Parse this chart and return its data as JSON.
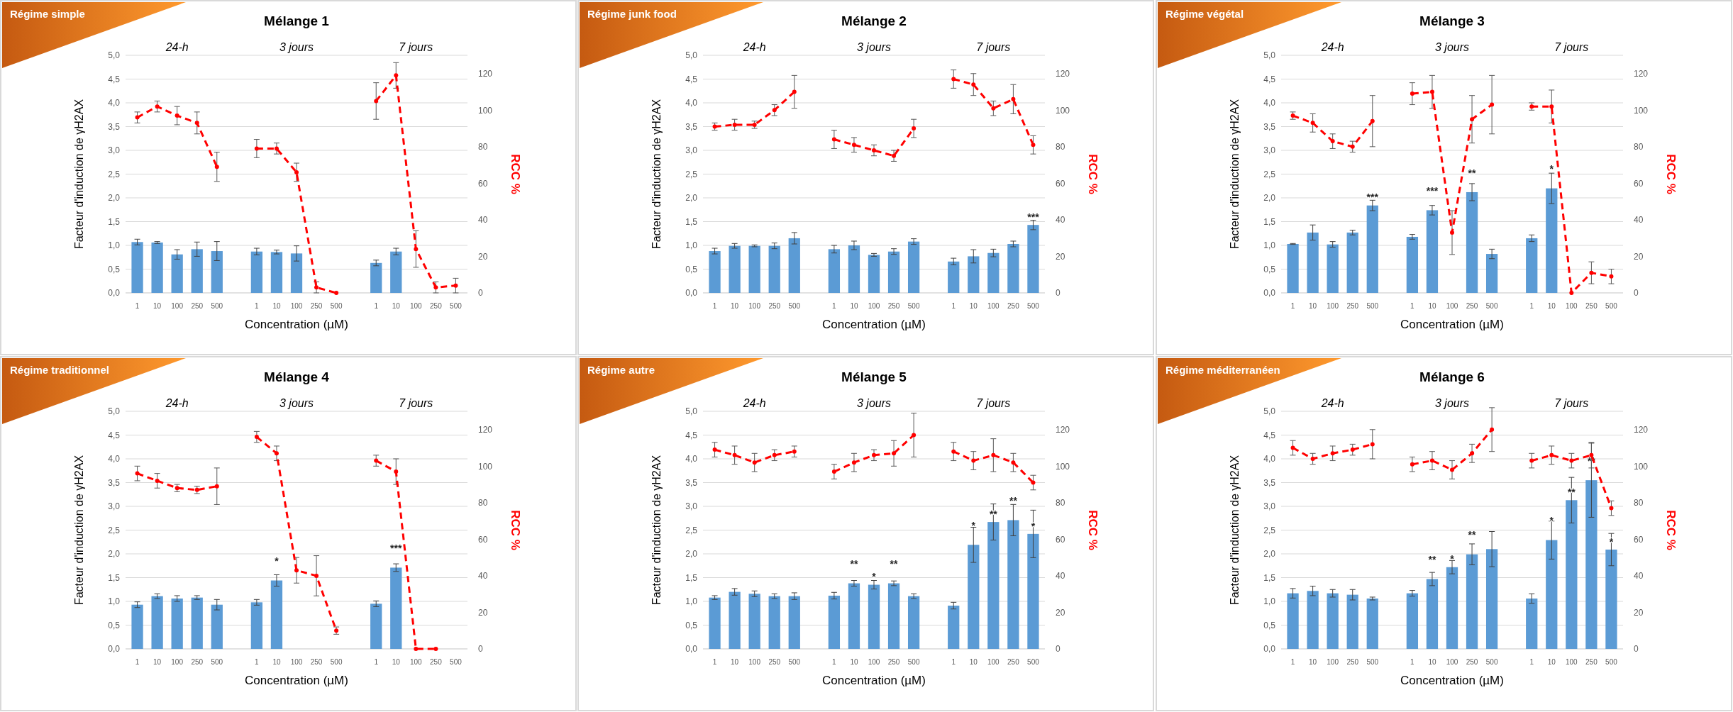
{
  "chart_data": [
    {
      "type": "bar",
      "title": "Mélange 1",
      "subtitle": "Régime simple",
      "xlabel": "Concentration (µM)",
      "ylabel": "Facteur d'induction de γH2AX",
      "y2label": "RCC %",
      "annotations": [
        "24-h",
        "3 jours",
        "7 jours"
      ],
      "categories": [
        "1",
        "10",
        "100",
        "250",
        "500",
        null,
        "1",
        "10",
        "100",
        "250",
        "500",
        null,
        "1",
        "10",
        "100",
        "250",
        "500"
      ],
      "ylim": [
        0,
        5
      ],
      "yticks": [
        {
          "value": 0,
          "label": "0,0"
        },
        {
          "value": 0.5,
          "label": "0,5"
        },
        {
          "value": 1,
          "label": "1,0"
        },
        {
          "value": 1.5,
          "label": "1,5"
        },
        {
          "value": 2,
          "label": "2,0"
        },
        {
          "value": 2.5,
          "label": "2,5"
        },
        {
          "value": 3,
          "label": "3,0"
        },
        {
          "value": 3.5,
          "label": "3,5"
        },
        {
          "value": 4,
          "label": "4,0"
        },
        {
          "value": 4.5,
          "label": "4,5"
        },
        {
          "value": 5,
          "label": "5,0"
        }
      ],
      "y2lim": [
        0,
        130
      ],
      "y2ticks": [
        0,
        20,
        40,
        60,
        80,
        100,
        120
      ],
      "grid": "y",
      "series": [
        {
          "type": "bar",
          "color": "#5b9bd5",
          "values": [
            1.07,
            1.06,
            0.81,
            0.92,
            0.88,
            null,
            0.87,
            0.86,
            0.83,
            null,
            null,
            null,
            0.63,
            0.87,
            null,
            null,
            null
          ],
          "errors": [
            0.06,
            0.02,
            0.1,
            0.15,
            0.2,
            null,
            0.07,
            0.04,
            0.16,
            null,
            null,
            null,
            0.06,
            0.07,
            null,
            null,
            null
          ]
        },
        {
          "type": "line",
          "axis": "y2",
          "color": "#ff0000",
          "line_style": "dashed",
          "marker": "circle",
          "values": [
            96,
            102,
            97,
            93,
            69,
            null,
            79,
            79,
            66,
            3,
            0,
            null,
            105,
            119,
            24,
            3,
            4
          ],
          "errors": [
            3,
            3,
            5,
            6,
            8,
            null,
            5,
            3,
            5,
            3,
            null,
            null,
            10,
            7,
            10,
            3,
            4
          ]
        }
      ]
    },
    {
      "type": "bar",
      "title": "Mélange 2",
      "subtitle": "Régime junk food",
      "xlabel": "Concentration (µM)",
      "ylabel": "Facteur d'induction de γH2AX",
      "y2label": "RCC %",
      "annotations": [
        "24-h",
        "3 jours",
        "7 jours"
      ],
      "categories": [
        "1",
        "10",
        "100",
        "250",
        "500",
        null,
        "1",
        "10",
        "100",
        "250",
        "500",
        null,
        "1",
        "10",
        "100",
        "250",
        "500"
      ],
      "ylim": [
        0,
        5
      ],
      "yticks": [
        {
          "value": 0,
          "label": "0,0"
        },
        {
          "value": 0.5,
          "label": "0,5"
        },
        {
          "value": 1,
          "label": "1,0"
        },
        {
          "value": 1.5,
          "label": "1,5"
        },
        {
          "value": 2,
          "label": "2,0"
        },
        {
          "value": 2.5,
          "label": "2,5"
        },
        {
          "value": 3,
          "label": "3,0"
        },
        {
          "value": 3.5,
          "label": "3,5"
        },
        {
          "value": 4,
          "label": "4,0"
        },
        {
          "value": 4.5,
          "label": "4,5"
        },
        {
          "value": 5,
          "label": "5,0"
        }
      ],
      "y2lim": [
        0,
        130
      ],
      "y2ticks": [
        0,
        20,
        40,
        60,
        80,
        100,
        120
      ],
      "grid": "y",
      "series": [
        {
          "type": "bar",
          "color": "#5b9bd5",
          "values": [
            0.88,
            0.99,
            0.99,
            0.99,
            1.15,
            null,
            0.92,
            1.0,
            0.8,
            0.87,
            1.08,
            null,
            0.66,
            0.77,
            0.84,
            1.03,
            1.43
          ],
          "errors": [
            0.06,
            0.05,
            0.02,
            0.06,
            0.12,
            null,
            0.08,
            0.09,
            0.03,
            0.06,
            0.06,
            null,
            0.07,
            0.14,
            0.08,
            0.06,
            0.1
          ],
          "value_labels": [
            null,
            null,
            null,
            null,
            null,
            null,
            null,
            null,
            null,
            null,
            null,
            null,
            null,
            null,
            null,
            null,
            "***"
          ]
        },
        {
          "type": "line",
          "axis": "y2",
          "color": "#ff0000",
          "line_style": "dashed",
          "marker": "circle",
          "values": [
            91,
            92,
            92,
            100,
            110,
            null,
            84,
            81,
            78,
            75,
            90,
            null,
            117,
            114,
            101,
            106,
            81
          ],
          "errors": [
            2,
            3,
            2,
            3,
            9,
            null,
            5,
            4,
            3,
            3,
            5,
            null,
            5,
            6,
            4,
            8,
            5
          ]
        }
      ]
    },
    {
      "type": "bar",
      "title": "Mélange 3",
      "subtitle": "Régime végétal",
      "xlabel": "Concentration (µM)",
      "ylabel": "Facteur d'induction de γH2AX",
      "y2label": "RCC %",
      "annotations": [
        "24-h",
        "3 jours",
        "7 jours"
      ],
      "categories": [
        "1",
        "10",
        "100",
        "250",
        "500",
        null,
        "1",
        "10",
        "100",
        "250",
        "500",
        null,
        "1",
        "10",
        "100",
        "250",
        "500"
      ],
      "ylim": [
        0,
        5
      ],
      "yticks": [
        {
          "value": 0,
          "label": "0,0"
        },
        {
          "value": 0.5,
          "label": "0,5"
        },
        {
          "value": 1,
          "label": "1,0"
        },
        {
          "value": 1.5,
          "label": "1,5"
        },
        {
          "value": 2,
          "label": "2,0"
        },
        {
          "value": 2.5,
          "label": "2,5"
        },
        {
          "value": 3,
          "label": "3,0"
        },
        {
          "value": 3.5,
          "label": "3,5"
        },
        {
          "value": 4,
          "label": "4,0"
        },
        {
          "value": 4.5,
          "label": "4,5"
        },
        {
          "value": 5,
          "label": "5,0"
        }
      ],
      "y2lim": [
        0,
        130
      ],
      "y2ticks": [
        0,
        20,
        40,
        60,
        80,
        100,
        120
      ],
      "grid": "y",
      "series": [
        {
          "type": "bar",
          "color": "#5b9bd5",
          "values": [
            1.03,
            1.27,
            1.02,
            1.27,
            1.84,
            null,
            1.18,
            1.74,
            null,
            2.12,
            0.82,
            null,
            1.15,
            2.2,
            null,
            null,
            null
          ],
          "errors": [
            0.01,
            0.16,
            0.06,
            0.05,
            0.11,
            null,
            0.05,
            0.1,
            null,
            0.18,
            0.1,
            null,
            0.07,
            0.32,
            null,
            null,
            null
          ],
          "value_labels": [
            null,
            null,
            null,
            null,
            "***",
            null,
            null,
            "***",
            null,
            "**",
            null,
            null,
            null,
            "*",
            null,
            null,
            null
          ]
        },
        {
          "type": "line",
          "axis": "y2",
          "color": "#ff0000",
          "line_style": "dashed",
          "marker": "circle",
          "values": [
            97,
            93,
            83,
            80,
            94,
            null,
            109,
            110,
            33,
            95,
            103,
            null,
            102,
            102,
            0,
            11,
            9
          ],
          "errors": [
            2,
            5,
            4,
            3,
            14,
            null,
            6,
            9,
            12,
            13,
            16,
            null,
            2,
            9,
            null,
            6,
            4
          ]
        }
      ]
    },
    {
      "type": "bar",
      "title": "Mélange 4",
      "subtitle": "Régime traditionnel",
      "xlabel": "Concentration (µM)",
      "ylabel": "Facteur d'induction de γH2AX",
      "y2label": "RCC %",
      "annotations": [
        "24-h",
        "3 jours",
        "7 jours"
      ],
      "categories": [
        "1",
        "10",
        "100",
        "250",
        "500",
        null,
        "1",
        "10",
        "100",
        "250",
        "500",
        null,
        "1",
        "10",
        "100",
        "250",
        "500"
      ],
      "ylim": [
        0,
        5
      ],
      "yticks": [
        {
          "value": 0,
          "label": "0,0"
        },
        {
          "value": 0.5,
          "label": "0,5"
        },
        {
          "value": 1,
          "label": "1,0"
        },
        {
          "value": 1.5,
          "label": "1,5"
        },
        {
          "value": 2,
          "label": "2,0"
        },
        {
          "value": 2.5,
          "label": "2,5"
        },
        {
          "value": 3,
          "label": "3,0"
        },
        {
          "value": 3.5,
          "label": "3,5"
        },
        {
          "value": 4,
          "label": "4,0"
        },
        {
          "value": 4.5,
          "label": "4,5"
        },
        {
          "value": 5,
          "label": "5,0"
        }
      ],
      "y2lim": [
        0,
        130
      ],
      "y2ticks": [
        0,
        20,
        40,
        60,
        80,
        100,
        120
      ],
      "grid": "y",
      "series": [
        {
          "type": "bar",
          "color": "#5b9bd5",
          "values": [
            0.93,
            1.11,
            1.06,
            1.08,
            0.93,
            null,
            0.98,
            1.44,
            null,
            null,
            null,
            null,
            0.95,
            1.71,
            null,
            null,
            null
          ],
          "errors": [
            0.06,
            0.05,
            0.06,
            0.04,
            0.11,
            null,
            0.06,
            0.12,
            null,
            null,
            null,
            null,
            0.06,
            0.08,
            null,
            null,
            null
          ],
          "value_labels": [
            null,
            null,
            null,
            null,
            null,
            null,
            null,
            "*",
            null,
            null,
            null,
            null,
            null,
            "***",
            null,
            null,
            null
          ]
        },
        {
          "type": "line",
          "axis": "y2",
          "color": "#ff0000",
          "line_style": "dashed",
          "marker": "circle",
          "values": [
            96,
            92,
            88,
            87,
            89,
            null,
            116,
            107,
            43,
            40,
            10,
            null,
            103,
            97,
            0,
            0,
            null
          ],
          "errors": [
            4,
            4,
            2,
            2,
            10,
            null,
            3,
            4,
            7,
            11,
            2,
            null,
            3,
            7,
            null,
            null,
            null
          ]
        }
      ]
    },
    {
      "type": "bar",
      "title": "Mélange 5",
      "subtitle": "Régime autre",
      "xlabel": "Concentration (µM)",
      "ylabel": "Facteur d'induction de γH2AX",
      "y2label": "RCC %",
      "annotations": [
        "24-h",
        "3 jours",
        "7 jours"
      ],
      "categories": [
        "1",
        "10",
        "100",
        "250",
        "500",
        null,
        "1",
        "10",
        "100",
        "250",
        "500",
        null,
        "1",
        "10",
        "100",
        "250",
        "500"
      ],
      "ylim": [
        0,
        5
      ],
      "yticks": [
        {
          "value": 0,
          "label": "0,0"
        },
        {
          "value": 0.5,
          "label": "0,5"
        },
        {
          "value": 1,
          "label": "1,0"
        },
        {
          "value": 1.5,
          "label": "1,5"
        },
        {
          "value": 2,
          "label": "2,0"
        },
        {
          "value": 2.5,
          "label": "2,5"
        },
        {
          "value": 3,
          "label": "3,0"
        },
        {
          "value": 3.5,
          "label": "3,5"
        },
        {
          "value": 4,
          "label": "4,0"
        },
        {
          "value": 4.5,
          "label": "4,5"
        },
        {
          "value": 5,
          "label": "5,0"
        }
      ],
      "y2lim": [
        0,
        130
      ],
      "y2ticks": [
        0,
        20,
        40,
        60,
        80,
        100,
        120
      ],
      "grid": "y",
      "series": [
        {
          "type": "bar",
          "color": "#5b9bd5",
          "values": [
            1.08,
            1.2,
            1.16,
            1.11,
            1.11,
            null,
            1.12,
            1.38,
            1.35,
            1.38,
            1.11,
            null,
            0.91,
            2.19,
            2.67,
            2.71,
            2.42
          ],
          "errors": [
            0.04,
            0.07,
            0.06,
            0.05,
            0.07,
            null,
            0.07,
            0.06,
            0.09,
            0.05,
            0.05,
            null,
            0.07,
            0.37,
            0.38,
            0.33,
            0.5
          ],
          "value_labels": [
            null,
            null,
            null,
            null,
            null,
            null,
            null,
            "**",
            "*",
            "**",
            null,
            null,
            null,
            "*",
            "**",
            "**",
            "*"
          ]
        },
        {
          "type": "line",
          "axis": "y2",
          "color": "#ff0000",
          "line_style": "dashed",
          "marker": "circle",
          "values": [
            109,
            106,
            102,
            106,
            108,
            null,
            97,
            102,
            106,
            107,
            117,
            null,
            108,
            103,
            106,
            102,
            91
          ],
          "errors": [
            4,
            5,
            5,
            3,
            3,
            null,
            4,
            5,
            3,
            7,
            12,
            null,
            5,
            5,
            9,
            5,
            4
          ]
        }
      ]
    },
    {
      "type": "bar",
      "title": "Mélange 6",
      "subtitle": "Régime méditerranéen",
      "xlabel": "Concentration (µM)",
      "ylabel": "Facteur d'induction de γH2AX",
      "y2label": "RCC %",
      "annotations": [
        "24-h",
        "3 jours",
        "7 jours"
      ],
      "categories": [
        "1",
        "10",
        "100",
        "250",
        "500",
        null,
        "1",
        "10",
        "100",
        "250",
        "500",
        null,
        "1",
        "10",
        "100",
        "250",
        "500"
      ],
      "ylim": [
        0,
        5
      ],
      "yticks": [
        {
          "value": 0,
          "label": "0,0"
        },
        {
          "value": 0.5,
          "label": "0,5"
        },
        {
          "value": 1,
          "label": "1,0"
        },
        {
          "value": 1.5,
          "label": "1,5"
        },
        {
          "value": 2,
          "label": "2,0"
        },
        {
          "value": 2.5,
          "label": "2,5"
        },
        {
          "value": 3,
          "label": "3,0"
        },
        {
          "value": 3.5,
          "label": "3,5"
        },
        {
          "value": 4,
          "label": "4,0"
        },
        {
          "value": 4.5,
          "label": "4,5"
        },
        {
          "value": 5,
          "label": "5,0"
        }
      ],
      "y2lim": [
        0,
        130
      ],
      "y2ticks": [
        0,
        20,
        40,
        60,
        80,
        100,
        120
      ],
      "grid": "y",
      "series": [
        {
          "type": "bar",
          "color": "#5b9bd5",
          "values": [
            1.17,
            1.22,
            1.17,
            1.14,
            1.06,
            null,
            1.17,
            1.47,
            1.72,
            1.99,
            2.1,
            null,
            1.06,
            2.29,
            3.13,
            3.55,
            2.09
          ],
          "errors": [
            0.1,
            0.1,
            0.08,
            0.11,
            0.03,
            null,
            0.06,
            0.14,
            0.14,
            0.22,
            0.37,
            null,
            0.1,
            0.4,
            0.48,
            0.78,
            0.34
          ],
          "value_labels": [
            null,
            null,
            null,
            null,
            null,
            null,
            null,
            "**",
            "*",
            "**",
            null,
            null,
            null,
            "*",
            "**",
            "**",
            "*"
          ]
        },
        {
          "type": "line",
          "axis": "y2",
          "color": "#ff0000",
          "line_style": "dashed",
          "marker": "circle",
          "values": [
            110,
            104,
            107,
            109,
            112,
            null,
            101,
            103,
            98,
            107,
            120,
            null,
            103,
            106,
            103,
            106,
            77
          ],
          "errors": [
            4,
            3,
            4,
            3,
            8,
            null,
            4,
            5,
            5,
            5,
            12,
            null,
            4,
            5,
            4,
            7,
            4
          ]
        }
      ]
    }
  ]
}
